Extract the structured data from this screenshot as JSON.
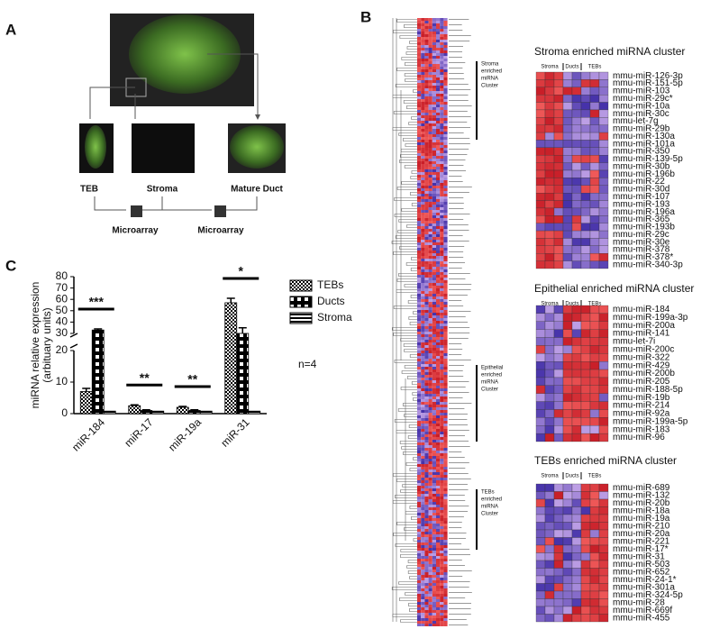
{
  "panel_labels": [
    "A",
    "B",
    "C"
  ],
  "panel_a": {
    "tissue_labels": [
      "TEB",
      "Stroma",
      "Mature Duct"
    ],
    "microarray_labels": [
      "Microarray",
      "Microarray"
    ]
  },
  "panel_b": {
    "annotations": [
      {
        "lines": [
          "Stroma",
          "enriched",
          "miRNA",
          "Cluster"
        ]
      },
      {
        "lines": [
          "Epithelial",
          "enriched",
          "miRNA",
          "Cluster"
        ]
      },
      {
        "lines": [
          "TEBs",
          "enriched",
          "miRNA",
          "Cluster"
        ]
      }
    ],
    "clusters": [
      {
        "title": "Stroma enriched miRNA cluster",
        "columns": [
          "Stroma",
          "Ducts",
          "TEBs"
        ],
        "genes": [
          "mmu-miR-126-3p",
          "mmu-miR-151-5p",
          "mmu-miR-103",
          "mmu-miR-29c*",
          "mmu-miR-10a",
          "mmu-miR-30c",
          "mmu-let-7g",
          "mmu-miR-29b",
          "mmu-miR-130a",
          "mmu-miR-101a",
          "mmu-miR-350",
          "mmu-miR-139-5p",
          "mmu-miR-30b",
          "mmu-miR-196b",
          "mmu-miR-22",
          "mmu-miR-30d",
          "mmu-miR-107",
          "mmu-miR-193",
          "mmu-miR-196a",
          "mmu-miR-365",
          "mmu-miR-193b",
          "mmu-miR-29c",
          "mmu-miR-30e",
          "mmu-miR-378",
          "mmu-miR-378*",
          "mmu-miR-340-3p"
        ]
      },
      {
        "title": "Epithelial enriched miRNA cluster",
        "columns": [
          "Stroma",
          "Ducts",
          "TEBs"
        ],
        "genes": [
          "mmu-miR-184",
          "mmu-miR-199a-3p",
          "mmu-miR-200a",
          "mmu-miR-141",
          "mmu-let-7i",
          "mmu-miR-200c",
          "mmu-miR-322",
          "mmu-miR-429",
          "mmu-miR-200b",
          "mmu-miR-205",
          "mmu-miR-188-5p",
          "mmu-miR-19b",
          "mmu-miR-214",
          "mmu-miR-92a",
          "mmu-miR-199a-5p",
          "mmu-miR-183",
          "mmu-miR-96"
        ]
      },
      {
        "title": "TEBs enriched miRNA cluster",
        "columns": [
          "Stroma",
          "Ducts",
          "TEBs"
        ],
        "genes": [
          "mmu-miR-689",
          "mmu-miR-132",
          "mmu-miR-20b",
          "mmu-miR-18a",
          "mmu-miR-19a",
          "mmu-miR-210",
          "mmu-miR-20a",
          "mmu-miR-221",
          "mmu-miR-17*",
          "mmu-miR-31",
          "mmu-miR-503",
          "mmu-miR-652",
          "mmu-miR-24-1*",
          "mmu-miR-301a",
          "mmu-miR-324-5p",
          "mmu-miR-28",
          "mmu-miR-669f",
          "mmu-miR-455"
        ]
      }
    ]
  },
  "chart_data": {
    "type": "bar",
    "y_label": [
      "miRNA relative expression",
      "(arbituary units)"
    ],
    "categories": [
      "miR-184",
      "miR-17",
      "miR-19a",
      "miR-31"
    ],
    "series": [
      {
        "name": "TEBs",
        "pattern": "checker",
        "values": [
          7,
          2.5,
          2,
          57
        ],
        "errors": [
          1,
          0.3,
          0.3,
          4
        ]
      },
      {
        "name": "Ducts",
        "pattern": "blocks",
        "values": [
          33,
          1,
          1,
          30
        ],
        "errors": [
          1,
          0.2,
          0.2,
          5
        ]
      },
      {
        "name": "Stroma",
        "pattern": "stripes",
        "values": [
          0.8,
          0.8,
          0.8,
          0.8
        ]
      }
    ],
    "significance": [
      "***",
      "**",
      "**",
      "*"
    ],
    "ylim": [
      0,
      80
    ],
    "yticks": [
      0,
      10,
      20,
      30,
      40,
      50,
      60,
      70,
      80
    ],
    "axis_break": [
      20,
      30
    ],
    "note": "n=4"
  }
}
